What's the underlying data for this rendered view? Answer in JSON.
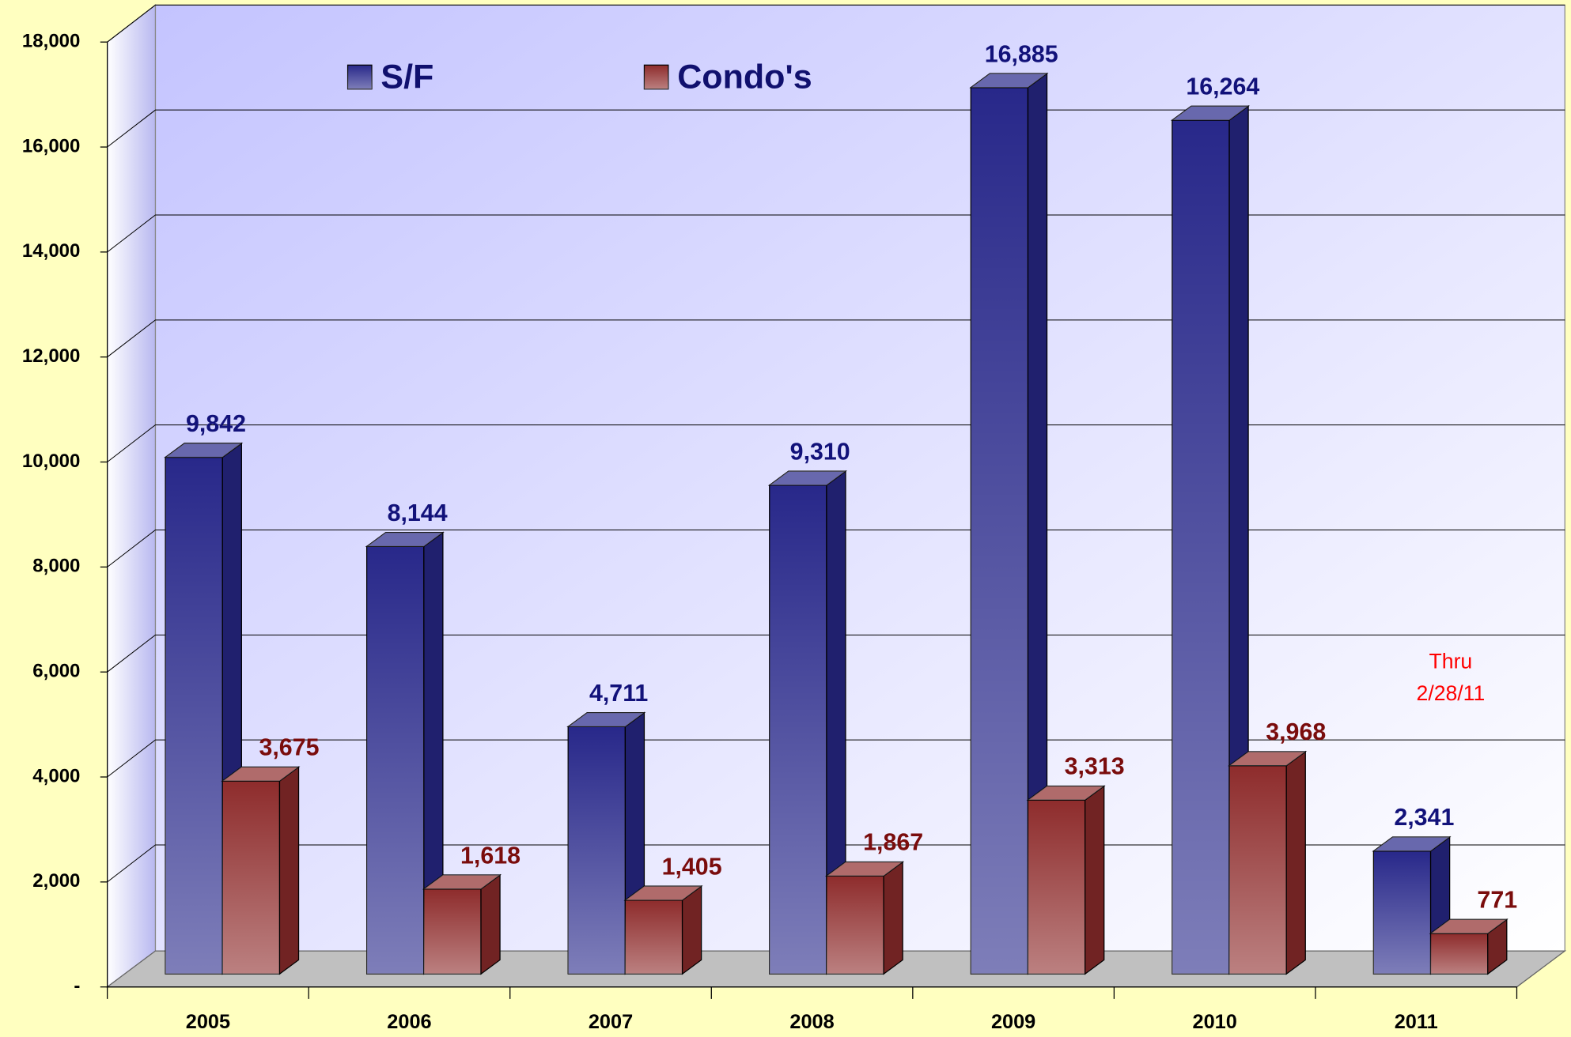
{
  "chart_data": {
    "type": "bar3d",
    "categories": [
      "2005",
      "2006",
      "2007",
      "2008",
      "2009",
      "2010",
      "2011"
    ],
    "series": [
      {
        "name": "S/F",
        "color": "#28288a",
        "label_color": "#12127a",
        "values": [
          9842,
          8144,
          4711,
          9310,
          16885,
          16264,
          2341
        ],
        "value_labels": [
          "9,842",
          "8,144",
          "4,711",
          "9,310",
          "16,885",
          "16,264",
          "2,341"
        ]
      },
      {
        "name": "Condo's",
        "color": "#8e2c2c",
        "label_color": "#7a0c0c",
        "values": [
          3675,
          1618,
          1405,
          1867,
          3313,
          3968,
          771
        ],
        "value_labels": [
          "3,675",
          "1,618",
          "1,405",
          "1,867",
          "3,313",
          "3,968",
          "771"
        ]
      }
    ],
    "ylim": [
      0,
      18000
    ],
    "yticks": [
      {
        "value": 0,
        "label": "-"
      },
      {
        "value": 2000,
        "label": "2,000"
      },
      {
        "value": 4000,
        "label": "4,000"
      },
      {
        "value": 6000,
        "label": "6,000"
      },
      {
        "value": 8000,
        "label": "8,000"
      },
      {
        "value": 10000,
        "label": "10,000"
      },
      {
        "value": 12000,
        "label": "12,000"
      },
      {
        "value": 14000,
        "label": "14,000"
      },
      {
        "value": 16000,
        "label": "16,000"
      },
      {
        "value": 18000,
        "label": "18,000"
      }
    ],
    "annotation": [
      "Thru",
      "2/28/11"
    ],
    "grid": true,
    "legend": "top"
  }
}
